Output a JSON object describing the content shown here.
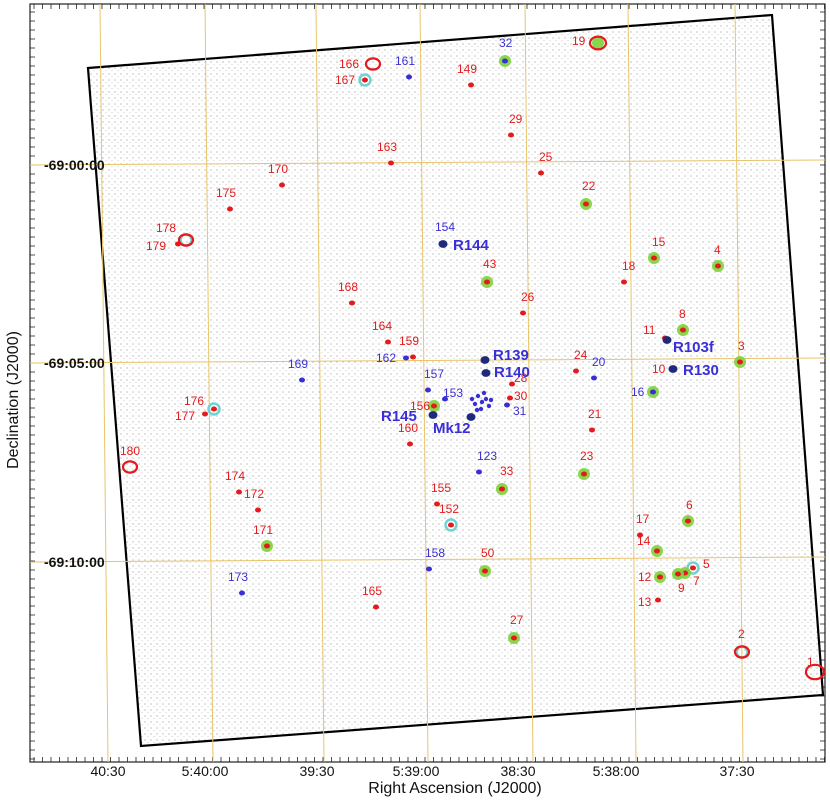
{
  "chart_data": {
    "type": "scatter",
    "xlabel": "Right Ascension (J2000)",
    "ylabel": "Declination (J2000)",
    "x_ticks": [
      "40:30",
      "5:40:00",
      "39:30",
      "5:39:00",
      "38:30",
      "5:38:00",
      "37:30"
    ],
    "y_ticks": [
      "-69:00:00",
      "-69:05:00",
      "-69:10:00"
    ],
    "colors": {
      "red": "#e41a1c",
      "blue": "#3a2fd6",
      "green": "#7dd13a",
      "cyan": "#6fd3d3",
      "grid": "#e8c46a",
      "stars": "#7a7a7a"
    },
    "sources": [
      {
        "label": "1",
        "ra": "5:37:09.8",
        "dec": "-69:13:08",
        "color": "red",
        "ring": "none"
      },
      {
        "label": "2",
        "ra": "5:37:21.3",
        "dec": "-69:12:10",
        "color": "red",
        "ring": "cyan"
      },
      {
        "label": "3",
        "ra": "5:37:22.2",
        "dec": "-69:05:00",
        "color": "red",
        "ring": "green"
      },
      {
        "label": "4",
        "ra": "5:37:25.4",
        "dec": "-69:02:35",
        "color": "red",
        "ring": "green"
      },
      {
        "label": "5",
        "ra": "5:37:39.5",
        "dec": "-69:10:15",
        "color": "red",
        "ring": "cyan"
      },
      {
        "label": "6",
        "ra": "5:37:41.8",
        "dec": "-69:08:58",
        "color": "red",
        "ring": "green"
      },
      {
        "label": "7",
        "ra": "5:37:42.6",
        "dec": "-69:10:25",
        "color": "red",
        "ring": "green"
      },
      {
        "label": "8",
        "ra": "5:37:43.4",
        "dec": "-69:04:20",
        "color": "red",
        "ring": "green"
      },
      {
        "label": "9",
        "ra": "5:37:44.3",
        "dec": "-69:10:30",
        "color": "red",
        "ring": "green"
      },
      {
        "label": "10",
        "ra": "5:37:48",
        "dec": "-69:05:17",
        "color": "red",
        "ring": "none"
      },
      {
        "label": "11",
        "ra": "5:37:45",
        "dec": "-69:04:25",
        "color": "red",
        "ring": "none"
      },
      {
        "label": "12",
        "ra": "5:37:50.8",
        "dec": "-69:10:30",
        "color": "red",
        "ring": "green"
      },
      {
        "label": "13",
        "ra": "5:37:50.9",
        "dec": "-69:11:04",
        "color": "red",
        "ring": "none"
      },
      {
        "label": "14",
        "ra": "5:37:50.8",
        "dec": "-69:09:50",
        "color": "red",
        "ring": "green"
      },
      {
        "label": "15",
        "ra": "5:37:53",
        "dec": "-69:02:22",
        "color": "red",
        "ring": "green"
      },
      {
        "label": "16",
        "ra": "5:37:54",
        "dec": "-69:05:40",
        "color": "blue",
        "ring": "green"
      },
      {
        "label": "17",
        "ra": "5:37:58.5",
        "dec": "-69:09:25",
        "color": "red",
        "ring": "none"
      },
      {
        "label": "18",
        "ra": "5:38:02",
        "dec": "-69:03:00",
        "color": "red",
        "ring": "none"
      },
      {
        "label": "19",
        "ra": "5:38:07.5",
        "dec": "-68:55:55",
        "color": "red",
        "ring": "green"
      },
      {
        "label": "20",
        "ra": "5:38:09",
        "dec": "-69:05:25",
        "color": "blue",
        "ring": "none"
      },
      {
        "label": "21",
        "ra": "5:38:11.5",
        "dec": "-69:06:30",
        "color": "red",
        "ring": "none"
      },
      {
        "label": "22",
        "ra": "5:38:14",
        "dec": "-69:01:05",
        "color": "red",
        "ring": "green"
      },
      {
        "label": "23",
        "ra": "5:38:14",
        "dec": "-69:07:48",
        "color": "red",
        "ring": "green"
      },
      {
        "label": "24",
        "ra": "5:38:17.5",
        "dec": "-69:05:15",
        "color": "red",
        "ring": "none"
      },
      {
        "label": "25",
        "ra": "5:38:27",
        "dec": "-69:00:20",
        "color": "red",
        "ring": "none"
      },
      {
        "label": "26",
        "ra": "5:38:32",
        "dec": "-69:03:40",
        "color": "red",
        "ring": "none"
      },
      {
        "label": "27",
        "ra": "5:38:36",
        "dec": "-69:12:05",
        "color": "red",
        "ring": "green"
      },
      {
        "label": "28",
        "ra": "5:38:37",
        "dec": "-69:05:35",
        "color": "red",
        "ring": "none"
      },
      {
        "label": "29",
        "ra": "5:38:37.5",
        "dec": "-68:58:40",
        "color": "red",
        "ring": "none"
      },
      {
        "label": "30",
        "ra": "5:38:38.5",
        "dec": "-69:05:50",
        "color": "red",
        "ring": "none"
      },
      {
        "label": "31",
        "ra": "5:38:39",
        "dec": "-69:06:05",
        "color": "blue",
        "ring": "none"
      },
      {
        "label": "32",
        "ra": "5:38:39.5",
        "dec": "-68:56:30",
        "color": "blue",
        "ring": "green"
      },
      {
        "label": "33",
        "ra": "5:38:40",
        "dec": "-69:08:25",
        "color": "red",
        "ring": "green"
      },
      {
        "label": "43",
        "ra": "5:38:44",
        "dec": "-69:03:05",
        "color": "red",
        "ring": "green"
      },
      {
        "label": "50",
        "ra": "5:38:44",
        "dec": "-69:10:10",
        "color": "red",
        "ring": "green"
      },
      {
        "label": "123",
        "ra": "5:38:46",
        "dec": "-69:07:30",
        "color": "blue",
        "ring": "none"
      },
      {
        "label": "149",
        "ra": "5:38:51",
        "dec": "-68:57:20",
        "color": "red",
        "ring": "none"
      },
      {
        "label": "152",
        "ra": "5:38:57",
        "dec": "-69:09:00",
        "color": "red",
        "ring": "cyan"
      },
      {
        "label": "153",
        "ra": "5:38:53",
        "dec": "-69:06:00",
        "color": "blue",
        "ring": "none"
      },
      {
        "label": "154",
        "ra": "5:38:59",
        "dec": "-69:01:55",
        "color": "blue",
        "ring": "none"
      },
      {
        "label": "155",
        "ra": "5:39:00",
        "dec": "-69:08:40",
        "color": "red",
        "ring": "none"
      },
      {
        "label": "156",
        "ra": "5:39:04",
        "dec": "-69:06:15",
        "color": "red",
        "ring": "green"
      },
      {
        "label": "157",
        "ra": "5:39:02",
        "dec": "-69:05:55",
        "color": "blue",
        "ring": "none"
      },
      {
        "label": "158",
        "ra": "5:39:04",
        "dec": "-69:10:10",
        "color": "blue",
        "ring": "none"
      },
      {
        "label": "159",
        "ra": "5:39:11",
        "dec": "-69:04:50",
        "color": "red",
        "ring": "none"
      },
      {
        "label": "160",
        "ra": "5:39:11",
        "dec": "-69:07:00",
        "color": "red",
        "ring": "none"
      },
      {
        "label": "161",
        "ra": "5:39:12.5",
        "dec": "-68:57:00",
        "color": "blue",
        "ring": "none"
      },
      {
        "label": "162",
        "ra": "5:39:13",
        "dec": "-69:05:05",
        "color": "blue",
        "ring": "none"
      },
      {
        "label": "163",
        "ra": "5:39:18",
        "dec": "-68:59:50",
        "color": "red",
        "ring": "none"
      },
      {
        "label": "164",
        "ra": "5:39:16",
        "dec": "-69:04:25",
        "color": "red",
        "ring": "none"
      },
      {
        "label": "165",
        "ra": "5:39:22",
        "dec": "-69:11:10",
        "color": "red",
        "ring": "none"
      },
      {
        "label": "166",
        "ra": "5:39:23.5",
        "dec": "-68:56:40",
        "color": "red",
        "ring": "none"
      },
      {
        "label": "167",
        "ra": "5:39:25",
        "dec": "-68:57:05",
        "color": "red",
        "ring": "cyan"
      },
      {
        "label": "168",
        "ra": "5:39:28",
        "dec": "-69:03:45",
        "color": "red",
        "ring": "none"
      },
      {
        "label": "169",
        "ra": "5:39:42",
        "dec": "-69:05:30",
        "color": "blue",
        "ring": "none"
      },
      {
        "label": "170",
        "ra": "5:39:48",
        "dec": "-69:00:20",
        "color": "red",
        "ring": "none"
      },
      {
        "label": "171",
        "ra": "5:39:51",
        "dec": "-69:09:55",
        "color": "red",
        "ring": "green"
      },
      {
        "label": "172",
        "ra": "5:39:53",
        "dec": "-69:08:40",
        "color": "red",
        "ring": "none"
      },
      {
        "label": "173",
        "ra": "5:39:58",
        "dec": "-69:10:40",
        "color": "blue",
        "ring": "none"
      },
      {
        "label": "174",
        "ra": "5:39:59",
        "dec": "-69:08:15",
        "color": "red",
        "ring": "none"
      },
      {
        "label": "175",
        "ra": "5:40:03",
        "dec": "-69:01:00",
        "color": "red",
        "ring": "none"
      },
      {
        "label": "176",
        "ra": "5:40:08",
        "dec": "-69:06:20",
        "color": "red",
        "ring": "cyan"
      },
      {
        "label": "177",
        "ra": "5:40:09",
        "dec": "-69:06:25",
        "color": "red",
        "ring": "none"
      },
      {
        "label": "178",
        "ra": "5:40:16",
        "dec": "-69:02:00",
        "color": "red",
        "ring": "cyan"
      },
      {
        "label": "179",
        "ra": "5:40:18",
        "dec": "-69:02:05",
        "color": "red",
        "ring": "none"
      },
      {
        "label": "180",
        "ra": "5:40:28",
        "dec": "-69:07:45",
        "color": "red",
        "ring": "none"
      },
      {
        "label": "R144",
        "ra": "5:38:58.5",
        "dec": "-69:01:55",
        "color": "blue",
        "ring": "none"
      },
      {
        "label": "R139",
        "ra": "5:38:47",
        "dec": "-69:05:00",
        "color": "blue",
        "ring": "none"
      },
      {
        "label": "R140",
        "ra": "5:38:47",
        "dec": "-69:05:20",
        "color": "blue",
        "ring": "none"
      },
      {
        "label": "R145",
        "ra": "5:39:05",
        "dec": "-69:06:15",
        "color": "blue",
        "ring": "none"
      },
      {
        "label": "Mk12",
        "ra": "5:38:55",
        "dec": "-69:06:30",
        "color": "blue",
        "ring": "none"
      },
      {
        "label": "R103f",
        "ra": "5:37:45",
        "dec": "-69:04:45",
        "color": "blue",
        "ring": "none"
      },
      {
        "label": "R130",
        "ra": "5:37:47",
        "dec": "-69:05:15",
        "color": "blue",
        "ring": "none"
      }
    ]
  }
}
